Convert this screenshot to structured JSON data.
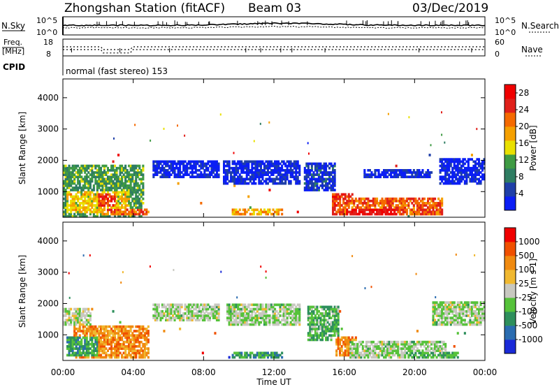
{
  "header": {
    "station": "Zhongshan Station (fitACF)",
    "beam": "Beam 03",
    "date": "03/Dec/2019"
  },
  "noise_panel": {
    "left_label": "N.Sky",
    "right_label": "N.Search",
    "left_ticks": [
      "10^5",
      "10^0"
    ],
    "right_ticks": [
      "10^5",
      "10^0"
    ]
  },
  "freq_panel": {
    "left_label_1": "Freq.",
    "left_label_2": "[MHz]",
    "right_label": "Nave",
    "left_ticks": [
      "18",
      "8"
    ],
    "right_ticks": [
      "60",
      "0"
    ]
  },
  "cpid": {
    "label": "CPID",
    "text": "normal (fast stereo) 153"
  },
  "x_axis": {
    "title": "Time UT",
    "ticks": [
      "00:00",
      "04:00",
      "08:00",
      "12:00",
      "16:00",
      "20:00",
      "00:00"
    ]
  },
  "chart_data": [
    {
      "type": "heatmap",
      "name": "power",
      "ylabel": "Slant Range [km]",
      "yticks": [
        1000,
        2000,
        3000,
        4000
      ],
      "ylim": [
        180,
        4600
      ],
      "xlim": [
        0,
        24
      ],
      "colorbar": {
        "label": "Power [dB]",
        "ticks": [
          "4",
          "8",
          "12",
          "16",
          "20",
          "24",
          "28"
        ],
        "range": [
          0,
          30
        ]
      },
      "colors": [
        "#0b1ef5",
        "#1f3fa8",
        "#2f7d62",
        "#3f9b44",
        "#e9e000",
        "#f5a000",
        "#f56a00",
        "#e0201a",
        "#f00000"
      ],
      "regions": [
        {
          "t0": 0.0,
          "t1": 4.6,
          "r0": 180,
          "r1": 1800,
          "level": 0.35
        },
        {
          "t0": 0.2,
          "t1": 3.8,
          "r0": 300,
          "r1": 1000,
          "level": 0.55
        },
        {
          "t0": 2.0,
          "t1": 3.0,
          "r0": 500,
          "r1": 950,
          "level": 0.8
        },
        {
          "t0": 2.2,
          "t1": 4.8,
          "r0": 220,
          "r1": 420,
          "level": 0.72
        },
        {
          "t0": 5.0,
          "t1": 8.8,
          "r0": 1400,
          "r1": 1950,
          "level": 0.05
        },
        {
          "t0": 9.0,
          "t1": 13.4,
          "r0": 1200,
          "r1": 2000,
          "level": 0.08
        },
        {
          "t0": 9.5,
          "t1": 12.4,
          "r0": 250,
          "r1": 400,
          "level": 0.62
        },
        {
          "t0": 13.6,
          "t1": 15.4,
          "r0": 1000,
          "r1": 1900,
          "level": 0.12
        },
        {
          "t0": 15.2,
          "t1": 16.4,
          "r0": 250,
          "r1": 900,
          "level": 0.82
        },
        {
          "t0": 15.6,
          "t1": 21.6,
          "r0": 200,
          "r1": 800,
          "level": 0.75
        },
        {
          "t0": 16.0,
          "t1": 19.0,
          "r0": 200,
          "r1": 450,
          "level": 0.92
        },
        {
          "t0": 17.0,
          "t1": 21.0,
          "r0": 1400,
          "r1": 1700,
          "level": 0.05
        },
        {
          "t0": 21.4,
          "t1": 24.0,
          "r0": 1200,
          "r1": 2050,
          "level": 0.05
        }
      ]
    },
    {
      "type": "heatmap",
      "name": "velocity",
      "ylabel": "Slant Range [km]",
      "yticks": [
        1000,
        2000,
        3000,
        4000
      ],
      "ylim": [
        180,
        4600
      ],
      "xlim": [
        0,
        24
      ],
      "colorbar": {
        "label": "Velocity [m s-1]",
        "ticks": [
          "1000",
          "500",
          "100",
          "25",
          "-25",
          "-100",
          "-500",
          "-1000"
        ]
      },
      "colors": [
        "#1a2ad8",
        "#2a6cb0",
        "#2e8f5c",
        "#56c23a",
        "#c8c8c0",
        "#f0b830",
        "#f08a10",
        "#f05000",
        "#f00000"
      ],
      "regions": [
        {
          "t0": 0.0,
          "t1": 1.6,
          "r0": 1300,
          "r1": 1800,
          "level": 0.5
        },
        {
          "t0": 0.6,
          "t1": 4.8,
          "r0": 200,
          "r1": 1300,
          "level": 0.72
        },
        {
          "t0": 0.2,
          "t1": 2.0,
          "r0": 300,
          "r1": 900,
          "level": 0.3
        },
        {
          "t0": 5.0,
          "t1": 8.8,
          "r0": 1400,
          "r1": 1950,
          "level": 0.45
        },
        {
          "t0": 9.2,
          "t1": 13.4,
          "r0": 1300,
          "r1": 2000,
          "level": 0.45
        },
        {
          "t0": 9.5,
          "t1": 12.4,
          "r0": 250,
          "r1": 400,
          "level": 0.3
        },
        {
          "t0": 13.8,
          "t1": 15.6,
          "r0": 800,
          "r1": 1900,
          "level": 0.35
        },
        {
          "t0": 15.4,
          "t1": 16.6,
          "r0": 300,
          "r1": 900,
          "level": 0.75
        },
        {
          "t0": 16.2,
          "t1": 21.8,
          "r0": 200,
          "r1": 800,
          "level": 0.45
        },
        {
          "t0": 19.5,
          "t1": 22.5,
          "r0": 200,
          "r1": 450,
          "level": 0.35
        },
        {
          "t0": 21.0,
          "t1": 24.0,
          "r0": 1300,
          "r1": 2050,
          "level": 0.45
        }
      ]
    }
  ]
}
